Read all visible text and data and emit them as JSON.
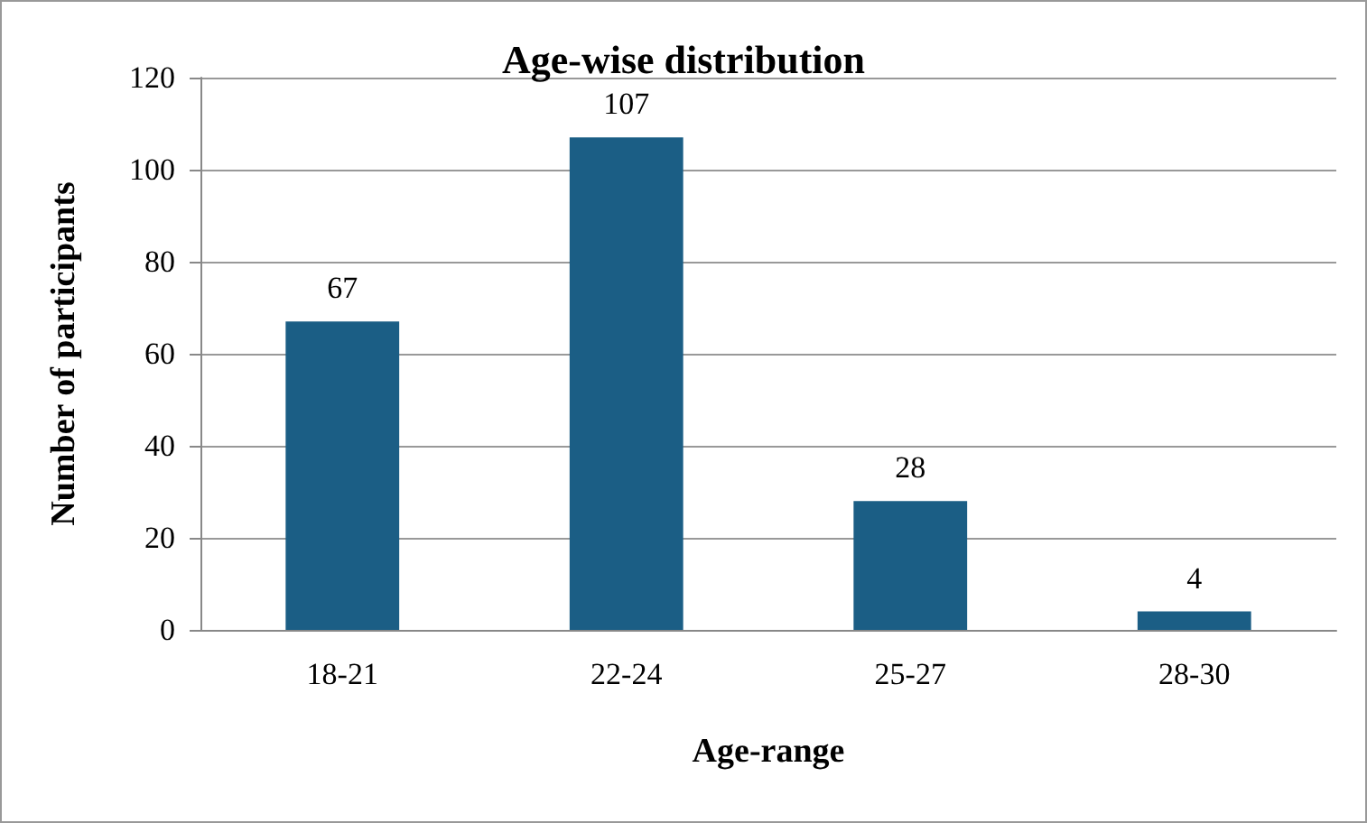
{
  "chart_data": {
    "type": "bar",
    "title": "Age-wise distribution",
    "xlabel": "Age-range",
    "ylabel": "Number of participants",
    "categories": [
      "18-21",
      "22-24",
      "25-27",
      "28-30"
    ],
    "values": [
      67,
      107,
      28,
      4
    ],
    "color": "#1b5e85",
    "ylim": [
      0,
      120
    ],
    "yticks": [
      0,
      20,
      40,
      60,
      80,
      100,
      120
    ],
    "grid": "y",
    "data_labels": true
  }
}
